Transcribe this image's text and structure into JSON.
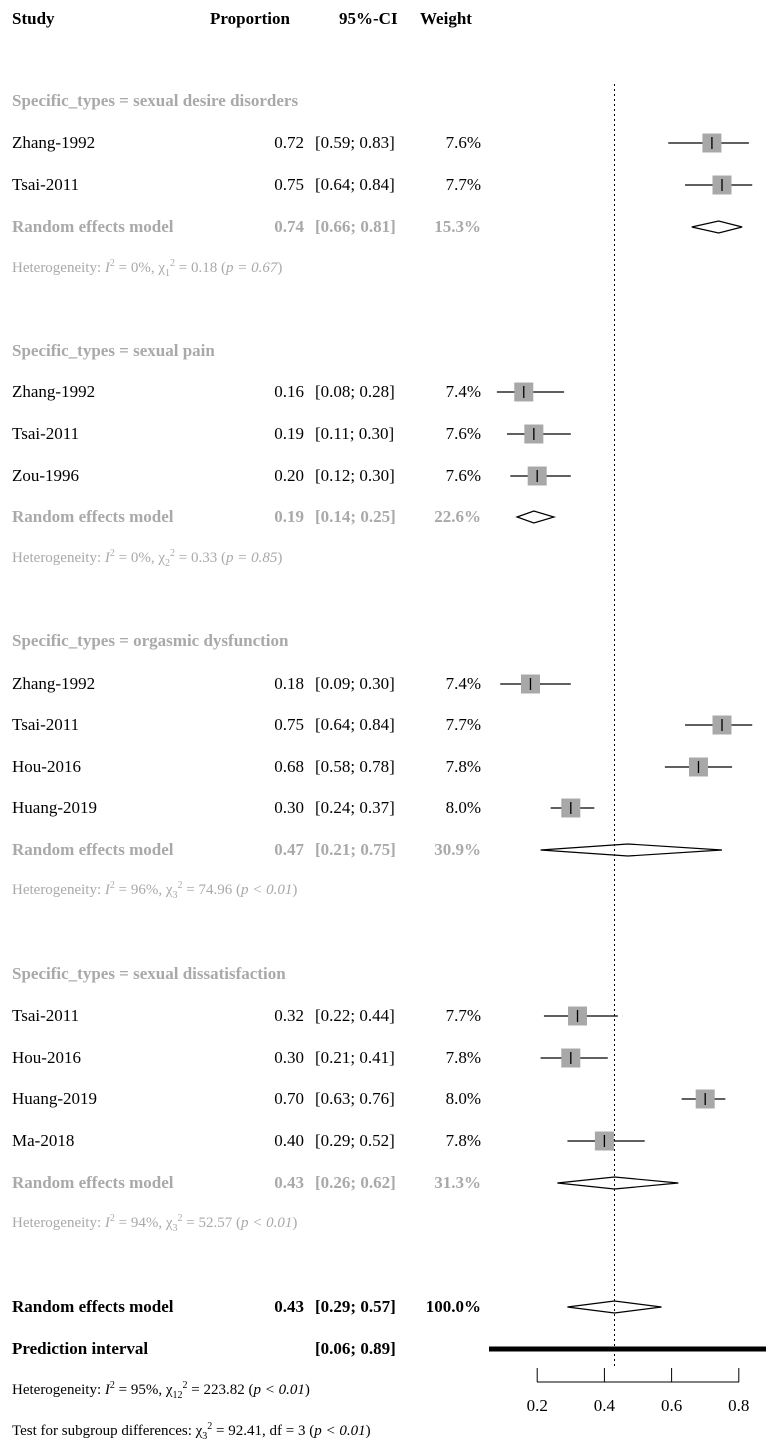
{
  "headers": {
    "study": "Study",
    "proportion": "Proportion",
    "ci": "95%-CI",
    "weight": "Weight"
  },
  "chart_data": {
    "type": "forest",
    "xlim": [
      0.0,
      1.0
    ],
    "xticks": [
      "0.2",
      "0.4",
      "0.6",
      "0.8"
    ],
    "reference_line": 0.43,
    "groups": [
      {
        "label": "Specific_types = sexual desire disorders",
        "studies": [
          {
            "study": "Zhang-1992",
            "prop": "0.72",
            "ci": "[0.59; 0.83]",
            "weight": "7.6%",
            "est": 0.72,
            "lo": 0.59,
            "hi": 0.83
          },
          {
            "study": "Tsai-2011",
            "prop": "0.75",
            "ci": "[0.64; 0.84]",
            "weight": "7.7%",
            "est": 0.75,
            "lo": 0.64,
            "hi": 0.84
          }
        ],
        "model": {
          "label": "Random effects model",
          "prop": "0.74",
          "ci": "[0.66; 0.81]",
          "weight": "15.3%",
          "est": 0.74,
          "lo": 0.66,
          "hi": 0.81
        },
        "het": {
          "i2": "0%",
          "df": "1",
          "chi": "0.18",
          "p": "p = 0.67"
        }
      },
      {
        "label": "Specific_types = sexual pain",
        "studies": [
          {
            "study": "Zhang-1992",
            "prop": "0.16",
            "ci": "[0.08; 0.28]",
            "weight": "7.4%",
            "est": 0.16,
            "lo": 0.08,
            "hi": 0.28
          },
          {
            "study": "Tsai-2011",
            "prop": "0.19",
            "ci": "[0.11; 0.30]",
            "weight": "7.6%",
            "est": 0.19,
            "lo": 0.11,
            "hi": 0.3
          },
          {
            "study": "Zou-1996",
            "prop": "0.20",
            "ci": "[0.12; 0.30]",
            "weight": "7.6%",
            "est": 0.2,
            "lo": 0.12,
            "hi": 0.3
          }
        ],
        "model": {
          "label": "Random effects model",
          "prop": "0.19",
          "ci": "[0.14; 0.25]",
          "weight": "22.6%",
          "est": 0.19,
          "lo": 0.14,
          "hi": 0.25
        },
        "het": {
          "i2": "0%",
          "df": "2",
          "chi": "0.33",
          "p": "p = 0.85"
        }
      },
      {
        "label": "Specific_types = orgasmic dysfunction",
        "studies": [
          {
            "study": "Zhang-1992",
            "prop": "0.18",
            "ci": "[0.09; 0.30]",
            "weight": "7.4%",
            "est": 0.18,
            "lo": 0.09,
            "hi": 0.3
          },
          {
            "study": "Tsai-2011",
            "prop": "0.75",
            "ci": "[0.64; 0.84]",
            "weight": "7.7%",
            "est": 0.75,
            "lo": 0.64,
            "hi": 0.84
          },
          {
            "study": "Hou-2016",
            "prop": "0.68",
            "ci": "[0.58; 0.78]",
            "weight": "7.8%",
            "est": 0.68,
            "lo": 0.58,
            "hi": 0.78
          },
          {
            "study": "Huang-2019",
            "prop": "0.30",
            "ci": "[0.24; 0.37]",
            "weight": "8.0%",
            "est": 0.3,
            "lo": 0.24,
            "hi": 0.37
          }
        ],
        "model": {
          "label": "Random effects model",
          "prop": "0.47",
          "ci": "[0.21; 0.75]",
          "weight": "30.9%",
          "est": 0.47,
          "lo": 0.21,
          "hi": 0.75
        },
        "het": {
          "i2": "96%",
          "df": "3",
          "chi": "74.96",
          "p": "p < 0.01"
        }
      },
      {
        "label": "Specific_types = sexual dissatisfaction",
        "studies": [
          {
            "study": "Tsai-2011",
            "prop": "0.32",
            "ci": "[0.22; 0.44]",
            "weight": "7.7%",
            "est": 0.32,
            "lo": 0.22,
            "hi": 0.44
          },
          {
            "study": "Hou-2016",
            "prop": "0.30",
            "ci": "[0.21; 0.41]",
            "weight": "7.8%",
            "est": 0.3,
            "lo": 0.21,
            "hi": 0.41
          },
          {
            "study": "Huang-2019",
            "prop": "0.70",
            "ci": "[0.63; 0.76]",
            "weight": "8.0%",
            "est": 0.7,
            "lo": 0.63,
            "hi": 0.76
          },
          {
            "study": "Ma-2018",
            "prop": "0.40",
            "ci": "[0.29; 0.52]",
            "weight": "7.8%",
            "est": 0.4,
            "lo": 0.29,
            "hi": 0.52
          }
        ],
        "model": {
          "label": "Random effects model",
          "prop": "0.43",
          "ci": "[0.26; 0.62]",
          "weight": "31.3%",
          "est": 0.43,
          "lo": 0.26,
          "hi": 0.62
        },
        "het": {
          "i2": "94%",
          "df": "3",
          "chi": "52.57",
          "p": "p < 0.01"
        }
      }
    ],
    "overall": {
      "label": "Random effects model",
      "prop": "0.43",
      "ci": "[0.29; 0.57]",
      "weight": "100.0%",
      "est": 0.43,
      "lo": 0.29,
      "hi": 0.57
    },
    "prediction": {
      "label": "Prediction interval",
      "ci": "[0.06; 0.89]",
      "lo": 0.06,
      "hi": 0.89
    },
    "overall_het": {
      "i2": "95%",
      "df": "12",
      "chi": "223.82",
      "p": "p < 0.01"
    },
    "subgroup_test": {
      "label": "Test for subgroup differences:",
      "df": "3",
      "chi": "92.41",
      "dfval": "df = 3",
      "p": "p < 0.01"
    }
  }
}
